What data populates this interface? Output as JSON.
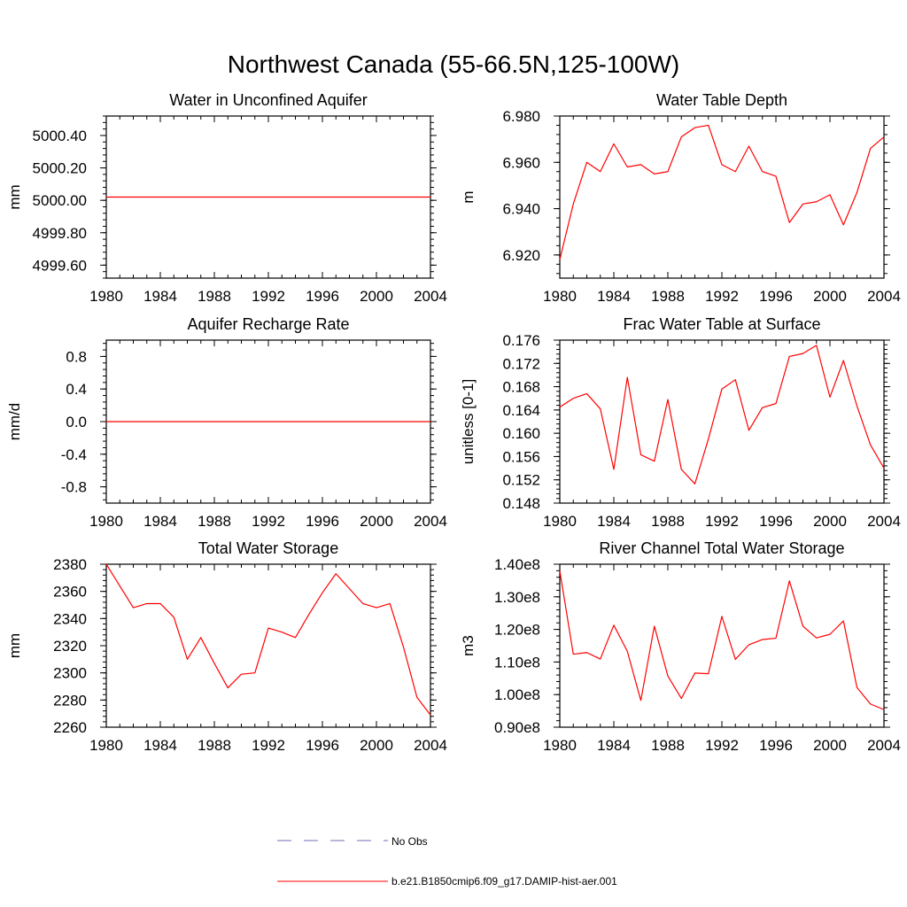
{
  "title": "Northwest Canada (55-66.5N,125-100W)",
  "colors": {
    "model": "#ff0000",
    "obs": "#6f6fb8",
    "axis": "#000000"
  },
  "legend": {
    "obs_label": "No Obs",
    "model_label": "b.e21.B1850cmip6.f09_g17.DAMIP-hist-aer.001"
  },
  "chart_data": [
    {
      "type": "line",
      "title": "Water in Unconfined Aquifer",
      "ylabel": "mm",
      "xlim": [
        1980,
        2004
      ],
      "ylim": [
        4999.52,
        5000.52
      ],
      "xticks": [
        1980,
        1984,
        1988,
        1992,
        1996,
        2000,
        2004
      ],
      "yticks": [
        "4999.60",
        "4999.80",
        "5000.00",
        "5000.20",
        "5000.40"
      ],
      "ytick_values": [
        4999.6,
        4999.8,
        5000.0,
        5000.2,
        5000.4
      ],
      "y_minor_step": 0.04,
      "x": [
        1980,
        1981,
        1982,
        1983,
        1984,
        1985,
        1986,
        1987,
        1988,
        1989,
        1990,
        1991,
        1992,
        1993,
        1994,
        1995,
        1996,
        1997,
        1998,
        1999,
        2000,
        2001,
        2002,
        2003,
        2004
      ],
      "series": [
        {
          "values": [
            5000.02,
            5000.02,
            5000.02,
            5000.02,
            5000.02,
            5000.02,
            5000.02,
            5000.02,
            5000.02,
            5000.02,
            5000.02,
            5000.02,
            5000.02,
            5000.02,
            5000.02,
            5000.02,
            5000.02,
            5000.02,
            5000.02,
            5000.02,
            5000.02,
            5000.02,
            5000.02,
            5000.02,
            5000.02
          ]
        }
      ]
    },
    {
      "type": "line",
      "title": "Water Table Depth",
      "ylabel": "m",
      "xlim": [
        1980,
        2004
      ],
      "ylim": [
        6.91,
        6.98
      ],
      "xticks": [
        1980,
        1984,
        1988,
        1992,
        1996,
        2000,
        2004
      ],
      "yticks": [
        "6.920",
        "6.940",
        "6.960",
        "6.980"
      ],
      "ytick_values": [
        6.92,
        6.94,
        6.96,
        6.98
      ],
      "y_minor_step": 0.004,
      "x": [
        1980,
        1981,
        1982,
        1983,
        1984,
        1985,
        1986,
        1987,
        1988,
        1989,
        1990,
        1991,
        1992,
        1993,
        1994,
        1995,
        1996,
        1997,
        1998,
        1999,
        2000,
        2001,
        2002,
        2003,
        2004
      ],
      "series": [
        {
          "values": [
            6.918,
            6.942,
            6.96,
            6.956,
            6.968,
            6.958,
            6.959,
            6.955,
            6.956,
            6.971,
            6.975,
            6.976,
            6.959,
            6.956,
            6.967,
            6.956,
            6.954,
            6.934,
            6.942,
            6.943,
            6.946,
            6.933,
            6.947,
            6.966,
            6.971
          ]
        }
      ]
    },
    {
      "type": "line",
      "title": "Aquifer Recharge Rate",
      "ylabel": "mm/d",
      "xlim": [
        1980,
        2004
      ],
      "ylim": [
        -1.0,
        1.0
      ],
      "xticks": [
        1980,
        1984,
        1988,
        1992,
        1996,
        2000,
        2004
      ],
      "yticks": [
        "-0.8",
        "-0.4",
        "0.0",
        "0.4",
        "0.8"
      ],
      "ytick_values": [
        -0.8,
        -0.4,
        0.0,
        0.4,
        0.8
      ],
      "y_minor_step": 0.08,
      "x": [
        1980,
        1981,
        1982,
        1983,
        1984,
        1985,
        1986,
        1987,
        1988,
        1989,
        1990,
        1991,
        1992,
        1993,
        1994,
        1995,
        1996,
        1997,
        1998,
        1999,
        2000,
        2001,
        2002,
        2003,
        2004
      ],
      "series": [
        {
          "values": [
            0,
            0,
            0,
            0,
            0,
            0,
            0,
            0,
            0,
            0,
            0,
            0,
            0,
            0,
            0,
            0,
            0,
            0,
            0,
            0,
            0,
            0,
            0,
            0,
            0
          ]
        }
      ]
    },
    {
      "type": "line",
      "title": "Frac Water Table at Surface",
      "ylabel": "unitless [0-1]",
      "xlim": [
        1980,
        2004
      ],
      "ylim": [
        0.148,
        0.176
      ],
      "xticks": [
        1980,
        1984,
        1988,
        1992,
        1996,
        2000,
        2004
      ],
      "yticks": [
        "0.148",
        "0.152",
        "0.156",
        "0.160",
        "0.164",
        "0.168",
        "0.172",
        "0.176"
      ],
      "ytick_values": [
        0.148,
        0.152,
        0.156,
        0.16,
        0.164,
        0.168,
        0.172,
        0.176
      ],
      "y_minor_step": 0.0008,
      "x": [
        1980,
        1981,
        1982,
        1983,
        1984,
        1985,
        1986,
        1987,
        1988,
        1989,
        1990,
        1991,
        1992,
        1993,
        1994,
        1995,
        1996,
        1997,
        1998,
        1999,
        2000,
        2001,
        2002,
        2003,
        2004
      ],
      "series": [
        {
          "values": [
            0.1645,
            0.166,
            0.1668,
            0.1642,
            0.1538,
            0.1696,
            0.1563,
            0.1552,
            0.1658,
            0.1538,
            0.1513,
            0.159,
            0.1676,
            0.1692,
            0.1605,
            0.1644,
            0.1651,
            0.1732,
            0.1737,
            0.1751,
            0.1662,
            0.1725,
            0.1647,
            0.158,
            0.154
          ]
        }
      ]
    },
    {
      "type": "line",
      "title": "Total Water Storage",
      "ylabel": "mm",
      "xlim": [
        1980,
        2004
      ],
      "ylim": [
        2260,
        2380
      ],
      "xticks": [
        1980,
        1984,
        1988,
        1992,
        1996,
        2000,
        2004
      ],
      "yticks": [
        "2260",
        "2280",
        "2300",
        "2320",
        "2340",
        "2360",
        "2380"
      ],
      "ytick_values": [
        2260,
        2280,
        2300,
        2320,
        2340,
        2360,
        2380
      ],
      "y_minor_step": 4,
      "x": [
        1980,
        1981,
        1982,
        1983,
        1984,
        1985,
        1986,
        1987,
        1988,
        1989,
        1990,
        1991,
        1992,
        1993,
        1994,
        1995,
        1996,
        1997,
        1998,
        1999,
        2000,
        2001,
        2002,
        2003,
        2004
      ],
      "series": [
        {
          "values": [
            2380,
            2364,
            2348,
            2351,
            2351,
            2341,
            2310,
            2326,
            2307,
            2289,
            2299,
            2300,
            2333,
            2330,
            2326,
            2343,
            2359,
            2373,
            2362,
            2351,
            2348,
            2351,
            2319,
            2282,
            2269
          ]
        }
      ]
    },
    {
      "type": "line",
      "title": "River Channel Total Water Storage",
      "ylabel": "m3",
      "xlim": [
        1980,
        2004
      ],
      "ylim": [
        90000000.0,
        140000000.0
      ],
      "xticks": [
        1980,
        1984,
        1988,
        1992,
        1996,
        2000,
        2004
      ],
      "yticks": [
        "0.90e8",
        "1.00e8",
        "1.10e8",
        "1.20e8",
        "1.30e8",
        "1.40e8"
      ],
      "ytick_values": [
        90000000,
        100000000,
        110000000,
        120000000,
        130000000,
        140000000
      ],
      "y_minor_step": 2000000,
      "x": [
        1980,
        1981,
        1982,
        1983,
        1984,
        1985,
        1986,
        1987,
        1988,
        1989,
        1990,
        1991,
        1992,
        1993,
        1994,
        1995,
        1996,
        1997,
        1998,
        1999,
        2000,
        2001,
        2002,
        2003,
        2004
      ],
      "series": [
        {
          "values": [
            138000000,
            112400000,
            112900000,
            110900000,
            121300000,
            113300000,
            98200000,
            121000000,
            105700000,
            98800000,
            106600000,
            106400000,
            124000000,
            110800000,
            115300000,
            116900000,
            117300000,
            134900000,
            121000000,
            117400000,
            118500000,
            122600000,
            102200000,
            97100000,
            95400000
          ]
        }
      ]
    }
  ]
}
